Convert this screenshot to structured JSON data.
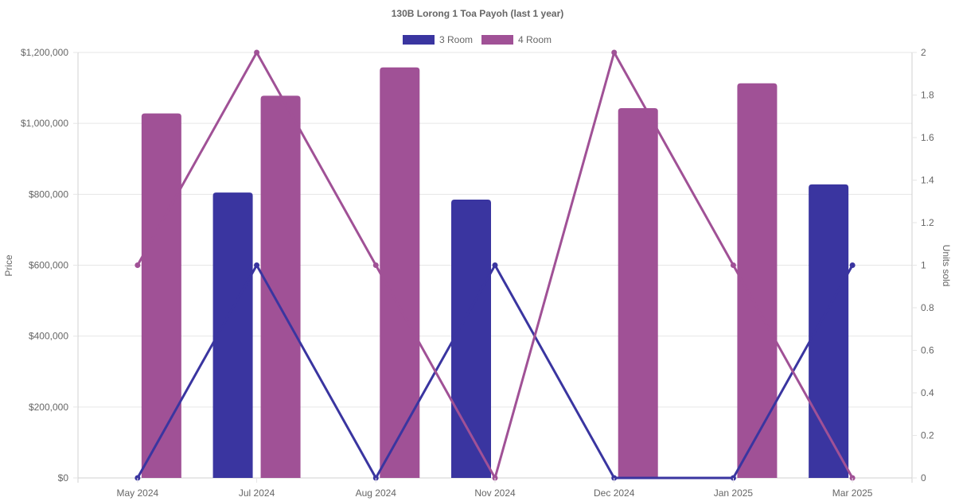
{
  "chart_data": {
    "type": "bar",
    "title": "130B Lorong 1 Toa Payoh (last 1 year)",
    "categories": [
      "May 2024",
      "Jul 2024",
      "Aug 2024",
      "Nov 2024",
      "Dec 2024",
      "Jan 2025",
      "Mar 2025"
    ],
    "y_left": {
      "label": "Price",
      "range": [
        0,
        1200000
      ],
      "ticks": [
        0,
        200000,
        400000,
        600000,
        800000,
        1000000,
        1200000
      ],
      "tick_labels": [
        "$0",
        "$200,000",
        "$400,000",
        "$600,000",
        "$800,000",
        "$1,000,000",
        "$1,200,000"
      ]
    },
    "y_right": {
      "label": "Units sold",
      "range": [
        0,
        2
      ],
      "ticks": [
        0,
        0.2,
        0.4,
        0.6,
        0.8,
        1,
        1.2,
        1.4,
        1.6,
        1.8,
        2
      ],
      "tick_labels": [
        "0",
        "0.2",
        "0.4",
        "0.6",
        "0.8",
        "1",
        "1.2",
        "1.4",
        "1.6",
        "1.8",
        "2"
      ]
    },
    "grid": true,
    "legend_position": "top",
    "series": [
      {
        "name": "3 Room",
        "color": "#3a35a0",
        "price_values": [
          null,
          805000,
          null,
          785000,
          null,
          null,
          828000
        ],
        "units_values": [
          0,
          1,
          0,
          1,
          0,
          0,
          1
        ]
      },
      {
        "name": "4 Room",
        "color": "#a05196",
        "price_values": [
          1028000,
          1078000,
          1158000,
          null,
          1043000,
          1113000,
          null
        ],
        "units_values": [
          1,
          2,
          1,
          0,
          2,
          1,
          0
        ]
      }
    ]
  }
}
